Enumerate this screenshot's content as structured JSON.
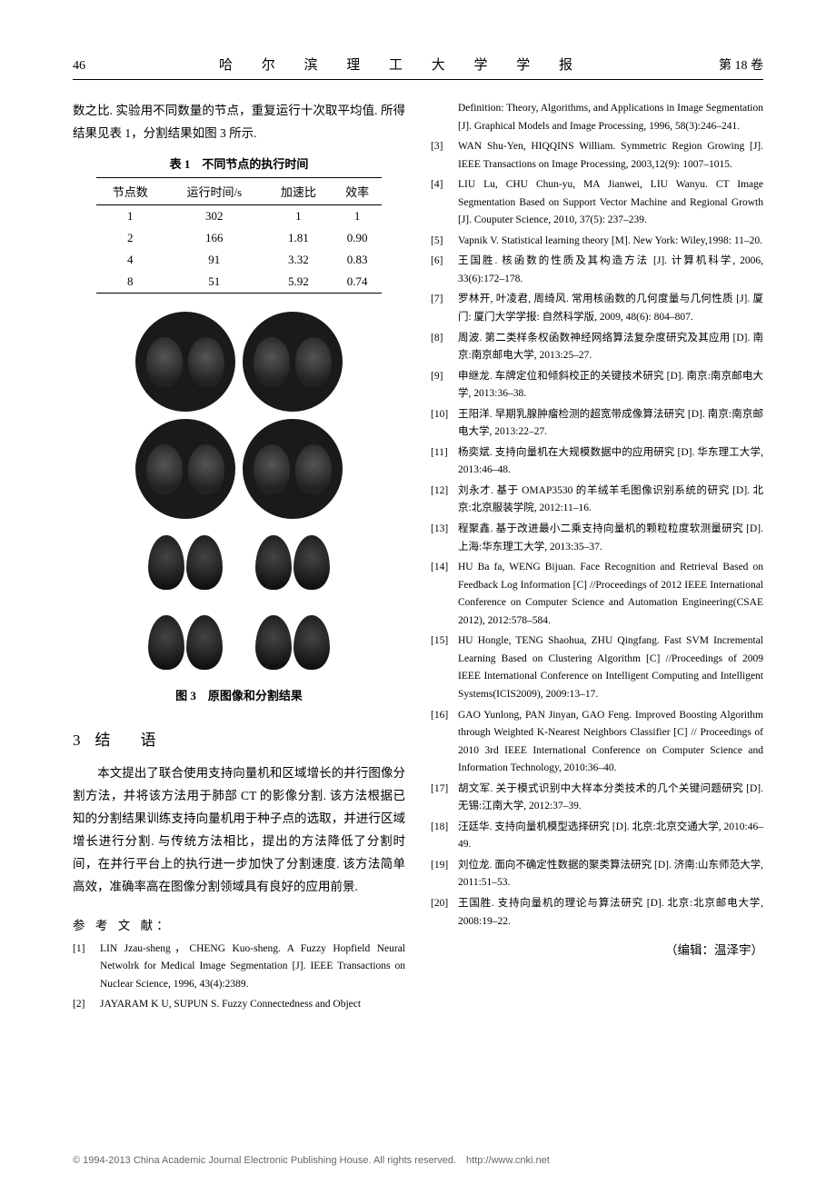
{
  "header": {
    "page_no": "46",
    "journal": "哈 尔 滨 理 工 大 学 学 报",
    "volume": "第 18 卷"
  },
  "left": {
    "para1": "数之比. 实验用不同数量的节点，重复运行十次取平均值. 所得结果见表 1，分割结果如图 3 所示.",
    "table": {
      "caption": "表 1　不同节点的执行时间",
      "columns": [
        "节点数",
        "运行时间/s",
        "加速比",
        "效率"
      ],
      "rows": [
        [
          "1",
          "302",
          "1",
          "1"
        ],
        [
          "2",
          "166",
          "1.81",
          "0.90"
        ],
        [
          "4",
          "91",
          "3.32",
          "0.83"
        ],
        [
          "8",
          "51",
          "5.92",
          "0.74"
        ]
      ]
    },
    "fig_caption": "图 3　原图像和分割结果",
    "section": {
      "num": "3",
      "title": "结　语"
    },
    "para2": "　　本文提出了联合使用支持向量机和区域增长的并行图像分割方法，并将该方法用于肺部 CT 的影像分割. 该方法根据已知的分割结果训练支持向量机用于种子点的选取，并进行区域增长进行分割. 与传统方法相比，提出的方法降低了分割时间，在并行平台上的执行进一步加快了分割速度. 该方法简单高效，准确率高在图像分割领域具有良好的应用前景.",
    "refs_label": "参 考 文 献：",
    "refs_left": [
      {
        "n": "[1]",
        "t": "LIN Jzau-sheng，CHENG Kuo-sheng. A Fuzzy Hopfield Neural Netwolrk for Medical Image Segmentation [J]. IEEE Transactions on Nuclear Science, 1996, 43(4):2389."
      },
      {
        "n": "[2]",
        "t": "JAYARAM K U, SUPUN S. Fuzzy Connectedness and Object"
      }
    ]
  },
  "right": {
    "refs_right": [
      {
        "n": "",
        "t": "Definition: Theory, Algorithms, and Applications in Image Segmentation [J]. Graphical Models and Image Processing, 1996, 58(3):246–241."
      },
      {
        "n": "[3]",
        "t": "WAN Shu-Yen, HIQQINS William. Symmetric Region Growing [J]. IEEE Transactions on Image Processing, 2003,12(9): 1007–1015."
      },
      {
        "n": "[4]",
        "t": "LIU Lu, CHU Chun-yu, MA Jianwei, LIU Wanyu. CT Image Segmentation Based on Support Vector Machine and Regional Growth [J]. Couputer Science, 2010, 37(5): 237–239."
      },
      {
        "n": "[5]",
        "t": "Vapnik V. Statistical learning theory [M]. New York: Wiley,1998: 11–20."
      },
      {
        "n": "[6]",
        "t": "王国胜. 核函数的性质及其构造方法 [J]. 计算机科学, 2006, 33(6):172–178."
      },
      {
        "n": "[7]",
        "t": "罗林开, 叶凌君, 周绮风. 常用核函数的几何度量与几何性质 [J]. 厦门: 厦门大学学报: 自然科学版, 2009, 48(6): 804–807."
      },
      {
        "n": "[8]",
        "t": "周波. 第二类样条权函数神经网络算法复杂度研究及其应用 [D]. 南京:南京邮电大学, 2013:25–27."
      },
      {
        "n": "[9]",
        "t": "申继龙. 车牌定位和倾斜校正的关键技术研究 [D]. 南京:南京邮电大学, 2013:36–38."
      },
      {
        "n": "[10]",
        "t": "王阳洋. 早期乳腺肿瘤检测的超宽带成像算法研究 [D]. 南京:南京邮电大学, 2013:22–27."
      },
      {
        "n": "[11]",
        "t": "杨奕斌. 支持向量机在大规模数据中的应用研究 [D]. 华东理工大学, 2013:46–48."
      },
      {
        "n": "[12]",
        "t": "刘永才. 基于 OMAP3530 的羊绒羊毛图像识别系统的研究 [D]. 北京:北京服装学院, 2012:11–16."
      },
      {
        "n": "[13]",
        "t": "程聚鑫. 基于改进最小二乘支持向量机的颗粒粒度软测量研究 [D]. 上海:华东理工大学, 2013:35–37."
      },
      {
        "n": "[14]",
        "t": "HU Ba fa, WENG Bijuan. Face Recognition and Retrieval Based on Feedback Log Information [C] //Proceedings of 2012 IEEE International Conference on Computer Science and Automation Engineering(CSAE 2012), 2012:578–584."
      },
      {
        "n": "[15]",
        "t": "HU Hongle, TENG Shaohua, ZHU Qingfang. Fast SVM Incremental Learning Based on Clustering Algorithm [C] //Proceedings of 2009 IEEE International Conference on Intelligent Computing and Intelligent Systems(ICIS2009), 2009:13–17."
      },
      {
        "n": "[16]",
        "t": "GAO Yunlong, PAN Jinyan, GAO Feng. Improved Boosting Algorithm through Weighted K-Nearest Neighbors Classifier [C] // Proceedings of 2010 3rd IEEE International Conference on Computer Science and Information Technology, 2010:36–40."
      },
      {
        "n": "[17]",
        "t": "胡文军. 关于模式识别中大样本分类技术的几个关键问题研究 [D]. 无锡:江南大学, 2012:37–39."
      },
      {
        "n": "[18]",
        "t": "汪廷华. 支持向量机模型选择研究 [D]. 北京:北京交通大学, 2010:46–49."
      },
      {
        "n": "[19]",
        "t": "刘位龙. 面向不确定性数据的聚类算法研究 [D]. 济南:山东师范大学, 2011:51–53."
      },
      {
        "n": "[20]",
        "t": "王国胜. 支持向量机的理论与算法研究 [D]. 北京:北京邮电大学, 2008:19–22."
      }
    ],
    "editor": "（编辑：温泽宇）"
  },
  "footer": "© 1994-2013 China Academic Journal Electronic Publishing House. All rights reserved.　http://www.cnki.net"
}
